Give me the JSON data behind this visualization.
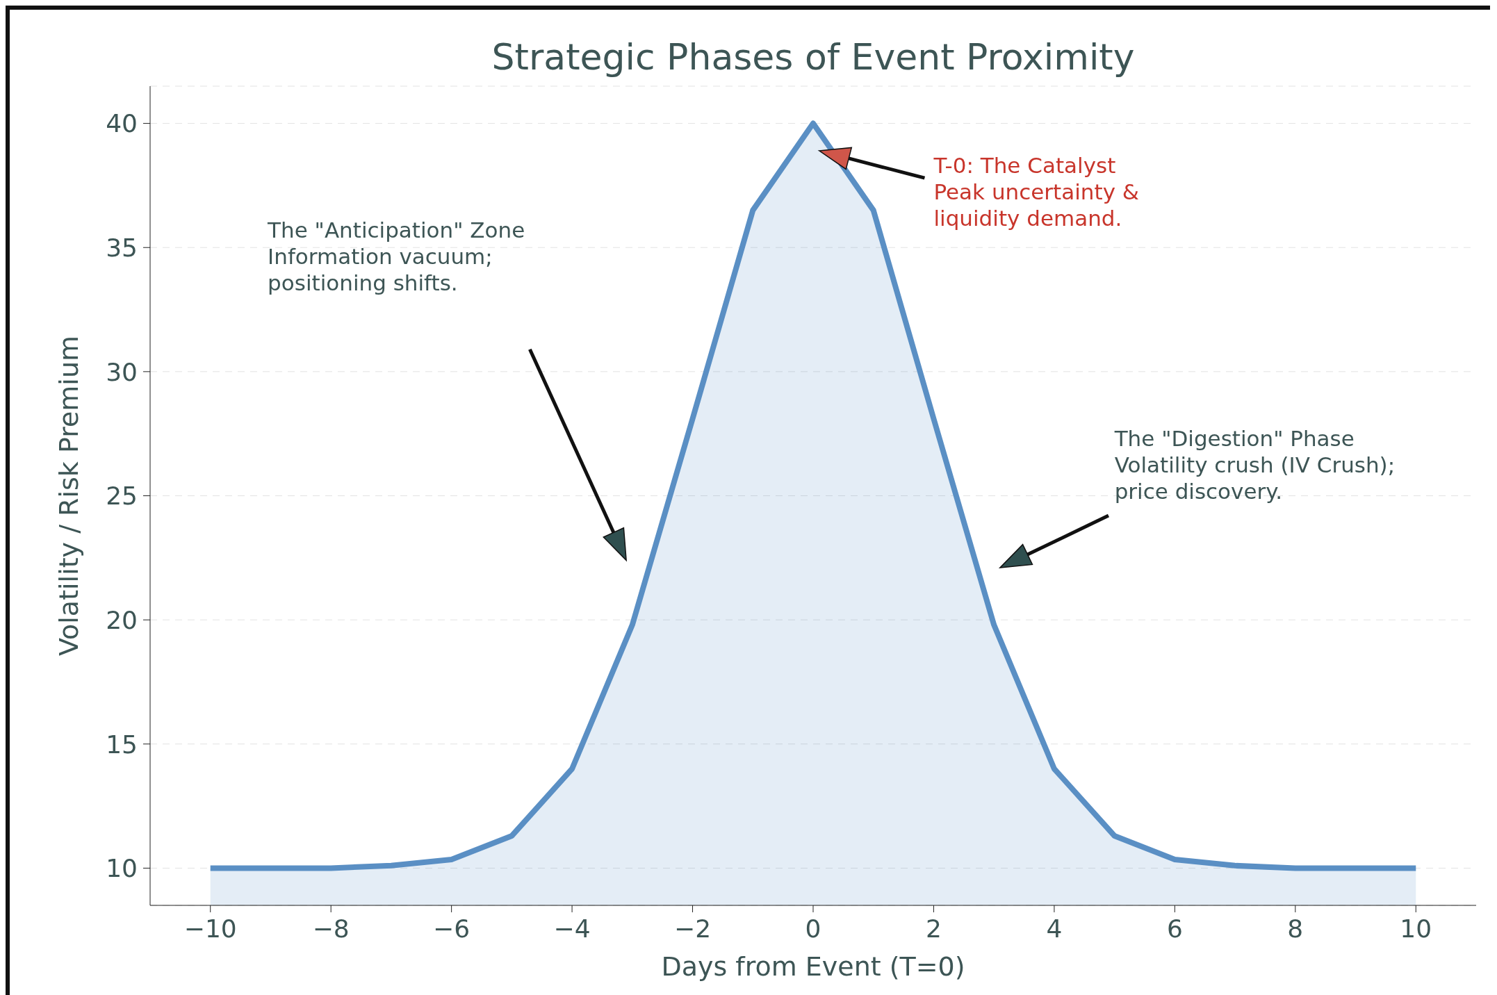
{
  "chart_data": {
    "type": "area",
    "title": "Strategic Phases of Event Proximity",
    "xlabel": "Days from Event (T=0)",
    "ylabel": "Volatility / Risk Premium",
    "x": [
      -10,
      -9,
      -8,
      -7,
      -6,
      -5,
      -4,
      -3,
      -2,
      -1,
      0,
      1,
      2,
      3,
      4,
      5,
      6,
      7,
      8,
      9,
      10
    ],
    "series": [
      {
        "color": "#5a8fc4",
        "values": [
          10,
          10,
          10,
          10.1,
          10.35,
          11.3,
          14,
          19.8,
          28.1,
          36.5,
          40,
          36.5,
          28.1,
          19.8,
          14,
          11.3,
          10.35,
          10.1,
          10,
          10,
          10
        ]
      }
    ],
    "xlim": [
      -11,
      11
    ],
    "ylim": [
      8.5,
      41.5
    ],
    "xticks": [
      {
        "value": -10,
        "label": "−10"
      },
      {
        "value": -8,
        "label": "−8"
      },
      {
        "value": -6,
        "label": "−6"
      },
      {
        "value": -4,
        "label": "−4"
      },
      {
        "value": -2,
        "label": "−2"
      },
      0,
      2,
      4,
      6,
      8,
      10
    ],
    "yticks": [
      10,
      15,
      20,
      25,
      30,
      35,
      40
    ],
    "grid": "y",
    "annotations": [
      "The \"Anticipation\" Zone\nInformation vacuum;\npositioning shifts.",
      "T-0: The Catalyst\nPeak uncertainty &\nliquidity demand.",
      "The \"Digestion\" Phase\nVolatility crush (IV Crush);\nprice discovery."
    ]
  }
}
